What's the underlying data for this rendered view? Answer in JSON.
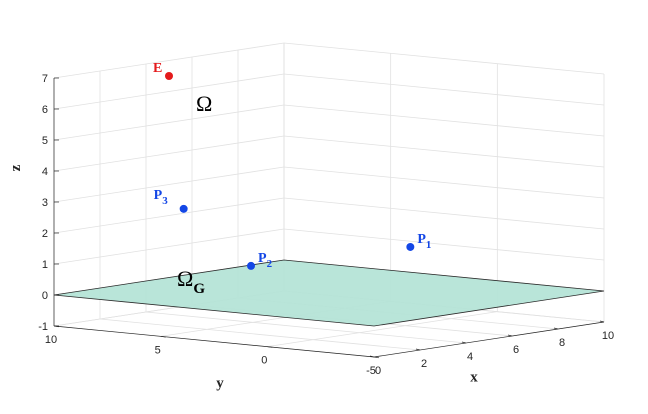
{
  "chart_data": {
    "type": "scatter3d",
    "title": "",
    "xlabel": "x",
    "ylabel": "y",
    "zlabel": "z",
    "xlim": [
      0,
      10
    ],
    "ylim": [
      -5,
      10
    ],
    "zlim": [
      -1,
      7
    ],
    "x_ticks": [
      "0",
      "2",
      "4",
      "6",
      "8",
      "10"
    ],
    "y_ticks": [
      "-5",
      "0",
      "5",
      "10"
    ],
    "z_ticks": [
      "-1",
      "0",
      "1",
      "2",
      "3",
      "4",
      "5",
      "6",
      "7"
    ],
    "grid": true,
    "plane": {
      "label_main": "Ω",
      "label_sub": "G",
      "z": 0,
      "color": "#b3e3d6"
    },
    "region_label": "Ω",
    "points": [
      {
        "label_main": "E",
        "label_sub": "",
        "x": 5,
        "y": 10,
        "z": 6.5,
        "color": "#e41a1c"
      },
      {
        "label_main": "P",
        "label_sub": "1",
        "x": 9,
        "y": 3,
        "z": 1,
        "color": "#1447e6"
      },
      {
        "label_main": "P",
        "label_sub": "2",
        "x": 3,
        "y": 4,
        "z": 1,
        "color": "#1447e6"
      },
      {
        "label_main": "P",
        "label_sub": "3",
        "x": 1,
        "y": 5,
        "z": 3,
        "color": "#1447e6"
      }
    ]
  }
}
